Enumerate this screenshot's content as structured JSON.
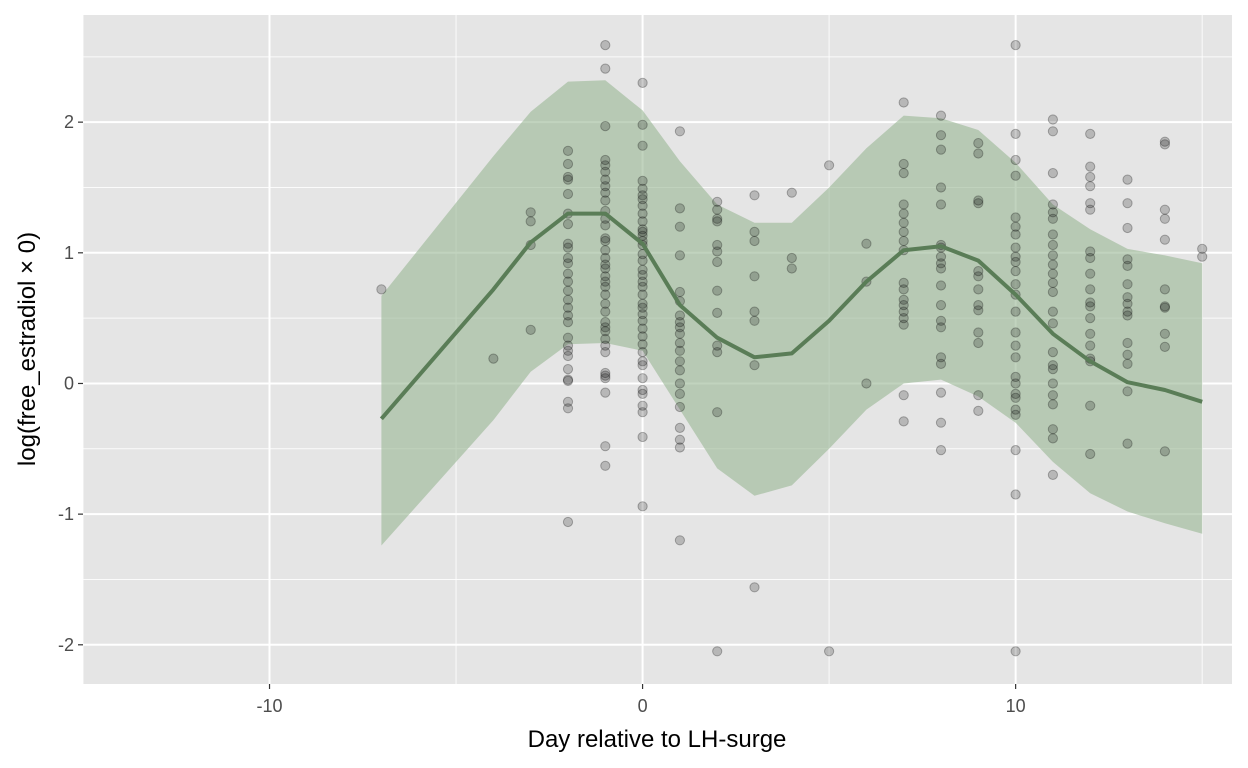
{
  "chart_data": {
    "type": "line",
    "title": "",
    "xlabel": "Day relative to LH-surge",
    "ylabel": "log(free_estradiol × 0)",
    "xlim": [
      -15,
      15.8
    ],
    "ylim": [
      -2.3,
      2.82
    ],
    "x_ticks": [
      -10,
      0,
      10
    ],
    "x_tick_labels": [
      "-10",
      "0",
      "10"
    ],
    "y_ticks": [
      -2,
      -1,
      0,
      1,
      2
    ],
    "y_tick_labels": [
      "-2",
      "-1",
      "0",
      "1",
      "2"
    ],
    "grid": true,
    "legend": "none",
    "colors": {
      "panel_bg": "#e5e5e5",
      "grid": "#ffffff",
      "ribbon": "#9bb896",
      "line": "#5a7d57",
      "points": "#000000"
    },
    "trend": {
      "x": [
        -7,
        -4,
        -3,
        -2,
        -1,
        0,
        1,
        2,
        3,
        4,
        5,
        6,
        7,
        8,
        9,
        10,
        11,
        12,
        13,
        14,
        15
      ],
      "y": [
        -0.27,
        0.72,
        1.08,
        1.3,
        1.3,
        1.07,
        0.6,
        0.35,
        0.2,
        0.23,
        0.48,
        0.78,
        1.02,
        1.05,
        0.94,
        0.68,
        0.38,
        0.17,
        0.01,
        -0.05,
        -0.14
      ],
      "lower": [
        -1.24,
        -0.28,
        0.09,
        0.3,
        0.31,
        0.25,
        -0.2,
        -0.65,
        -0.86,
        -0.78,
        -0.5,
        -0.2,
        0.0,
        0.03,
        -0.1,
        -0.3,
        -0.6,
        -0.84,
        -0.98,
        -1.07,
        -1.15
      ],
      "upper": [
        0.67,
        1.74,
        2.08,
        2.31,
        2.32,
        2.09,
        1.7,
        1.37,
        1.23,
        1.23,
        1.5,
        1.8,
        2.05,
        2.03,
        1.94,
        1.69,
        1.37,
        1.18,
        1.03,
        0.98,
        0.92
      ]
    },
    "points": [
      [
        -7,
        0.72
      ],
      [
        -4,
        0.19
      ],
      [
        -3,
        1.31
      ],
      [
        -3,
        1.24
      ],
      [
        -3,
        1.06
      ],
      [
        -3,
        0.41
      ],
      [
        -2,
        1.78
      ],
      [
        -2,
        1.68
      ],
      [
        -2,
        1.58
      ],
      [
        -2,
        1.56
      ],
      [
        -2,
        1.45
      ],
      [
        -2,
        1.3
      ],
      [
        -2,
        1.22
      ],
      [
        -2,
        1.07
      ],
      [
        -2,
        1.04
      ],
      [
        -2,
        0.96
      ],
      [
        -2,
        0.92
      ],
      [
        -2,
        0.84
      ],
      [
        -2,
        0.78
      ],
      [
        -2,
        0.71
      ],
      [
        -2,
        0.64
      ],
      [
        -2,
        0.58
      ],
      [
        -2,
        0.52
      ],
      [
        -2,
        0.47
      ],
      [
        -2,
        0.35
      ],
      [
        -2,
        0.29
      ],
      [
        -2,
        0.25
      ],
      [
        -2,
        0.21
      ],
      [
        -2,
        0.11
      ],
      [
        -2,
        0.03
      ],
      [
        -2,
        0.02
      ],
      [
        -2,
        -0.14
      ],
      [
        -2,
        -0.19
      ],
      [
        -2,
        -1.06
      ],
      [
        -1,
        2.59
      ],
      [
        -1,
        2.41
      ],
      [
        -1,
        1.97
      ],
      [
        -1,
        1.71
      ],
      [
        -1,
        1.67
      ],
      [
        -1,
        1.62
      ],
      [
        -1,
        1.56
      ],
      [
        -1,
        1.51
      ],
      [
        -1,
        1.46
      ],
      [
        -1,
        1.4
      ],
      [
        -1,
        1.32
      ],
      [
        -1,
        1.26
      ],
      [
        -1,
        1.21
      ],
      [
        -1,
        1.11
      ],
      [
        -1,
        1.09
      ],
      [
        -1,
        1.02
      ],
      [
        -1,
        0.96
      ],
      [
        -1,
        0.91
      ],
      [
        -1,
        0.88
      ],
      [
        -1,
        0.82
      ],
      [
        -1,
        0.78
      ],
      [
        -1,
        0.74
      ],
      [
        -1,
        0.68
      ],
      [
        -1,
        0.61
      ],
      [
        -1,
        0.55
      ],
      [
        -1,
        0.47
      ],
      [
        -1,
        0.43
      ],
      [
        -1,
        0.4
      ],
      [
        -1,
        0.34
      ],
      [
        -1,
        0.29
      ],
      [
        -1,
        0.24
      ],
      [
        -1,
        0.08
      ],
      [
        -1,
        0.06
      ],
      [
        -1,
        0.04
      ],
      [
        -1,
        -0.07
      ],
      [
        -1,
        -0.48
      ],
      [
        -1,
        -0.63
      ],
      [
        0,
        2.3
      ],
      [
        0,
        1.98
      ],
      [
        0,
        1.82
      ],
      [
        0,
        1.55
      ],
      [
        0,
        1.49
      ],
      [
        0,
        1.44
      ],
      [
        0,
        1.41
      ],
      [
        0,
        1.36
      ],
      [
        0,
        1.3
      ],
      [
        0,
        1.24
      ],
      [
        0,
        1.18
      ],
      [
        0,
        1.16
      ],
      [
        0,
        1.13
      ],
      [
        0,
        1.09
      ],
      [
        0,
        1.06
      ],
      [
        0,
        0.99
      ],
      [
        0,
        0.94
      ],
      [
        0,
        0.87
      ],
      [
        0,
        0.83
      ],
      [
        0,
        0.78
      ],
      [
        0,
        0.74
      ],
      [
        0,
        0.68
      ],
      [
        0,
        0.61
      ],
      [
        0,
        0.58
      ],
      [
        0,
        0.53
      ],
      [
        0,
        0.48
      ],
      [
        0,
        0.42
      ],
      [
        0,
        0.36
      ],
      [
        0,
        0.3
      ],
      [
        0,
        0.24
      ],
      [
        0,
        0.17
      ],
      [
        0,
        0.14
      ],
      [
        0,
        0.04
      ],
      [
        0,
        -0.05
      ],
      [
        0,
        -0.08
      ],
      [
        0,
        -0.17
      ],
      [
        0,
        -0.22
      ],
      [
        0,
        -0.41
      ],
      [
        0,
        -0.94
      ],
      [
        1,
        1.93
      ],
      [
        1,
        1.34
      ],
      [
        1,
        1.2
      ],
      [
        1,
        0.98
      ],
      [
        1,
        0.7
      ],
      [
        1,
        0.63
      ],
      [
        1,
        0.52
      ],
      [
        1,
        0.47
      ],
      [
        1,
        0.43
      ],
      [
        1,
        0.38
      ],
      [
        1,
        0.31
      ],
      [
        1,
        0.25
      ],
      [
        1,
        0.17
      ],
      [
        1,
        0.1
      ],
      [
        1,
        0.0
      ],
      [
        1,
        -0.08
      ],
      [
        1,
        -0.18
      ],
      [
        1,
        -0.34
      ],
      [
        1,
        -0.43
      ],
      [
        1,
        -0.49
      ],
      [
        1,
        -1.2
      ],
      [
        2,
        1.39
      ],
      [
        2,
        1.33
      ],
      [
        2,
        1.26
      ],
      [
        2,
        1.24
      ],
      [
        2,
        1.06
      ],
      [
        2,
        1.01
      ],
      [
        2,
        0.93
      ],
      [
        2,
        0.71
      ],
      [
        2,
        0.54
      ],
      [
        2,
        0.29
      ],
      [
        2,
        0.24
      ],
      [
        2,
        -0.22
      ],
      [
        2,
        -2.05
      ],
      [
        3,
        1.44
      ],
      [
        3,
        1.16
      ],
      [
        3,
        1.09
      ],
      [
        3,
        0.82
      ],
      [
        3,
        0.55
      ],
      [
        3,
        0.48
      ],
      [
        3,
        0.14
      ],
      [
        3,
        -1.56
      ],
      [
        4,
        1.46
      ],
      [
        4,
        0.96
      ],
      [
        4,
        0.88
      ],
      [
        5,
        1.67
      ],
      [
        5,
        -2.05
      ],
      [
        6,
        1.07
      ],
      [
        6,
        0.78
      ],
      [
        6,
        0.0
      ],
      [
        7,
        2.15
      ],
      [
        7,
        1.68
      ],
      [
        7,
        1.61
      ],
      [
        7,
        1.37
      ],
      [
        7,
        1.3
      ],
      [
        7,
        1.23
      ],
      [
        7,
        1.16
      ],
      [
        7,
        1.09
      ],
      [
        7,
        1.02
      ],
      [
        7,
        0.77
      ],
      [
        7,
        0.72
      ],
      [
        7,
        0.64
      ],
      [
        7,
        0.6
      ],
      [
        7,
        0.55
      ],
      [
        7,
        0.5
      ],
      [
        7,
        0.45
      ],
      [
        7,
        -0.09
      ],
      [
        7,
        -0.29
      ],
      [
        8,
        2.05
      ],
      [
        8,
        1.9
      ],
      [
        8,
        1.79
      ],
      [
        8,
        1.5
      ],
      [
        8,
        1.37
      ],
      [
        8,
        1.06
      ],
      [
        8,
        1.04
      ],
      [
        8,
        0.97
      ],
      [
        8,
        0.92
      ],
      [
        8,
        0.88
      ],
      [
        8,
        0.75
      ],
      [
        8,
        0.6
      ],
      [
        8,
        0.48
      ],
      [
        8,
        0.43
      ],
      [
        8,
        0.2
      ],
      [
        8,
        0.15
      ],
      [
        8,
        -0.07
      ],
      [
        8,
        -0.3
      ],
      [
        8,
        -0.51
      ],
      [
        9,
        1.84
      ],
      [
        9,
        1.76
      ],
      [
        9,
        1.4
      ],
      [
        9,
        1.38
      ],
      [
        9,
        0.86
      ],
      [
        9,
        0.82
      ],
      [
        9,
        0.72
      ],
      [
        9,
        0.6
      ],
      [
        9,
        0.56
      ],
      [
        9,
        0.39
      ],
      [
        9,
        0.31
      ],
      [
        9,
        -0.09
      ],
      [
        9,
        -0.21
      ],
      [
        10,
        2.59
      ],
      [
        10,
        1.91
      ],
      [
        10,
        1.71
      ],
      [
        10,
        1.59
      ],
      [
        10,
        1.27
      ],
      [
        10,
        1.2
      ],
      [
        10,
        1.14
      ],
      [
        10,
        1.04
      ],
      [
        10,
        0.97
      ],
      [
        10,
        0.93
      ],
      [
        10,
        0.86
      ],
      [
        10,
        0.76
      ],
      [
        10,
        0.68
      ],
      [
        10,
        0.55
      ],
      [
        10,
        0.39
      ],
      [
        10,
        0.29
      ],
      [
        10,
        0.2
      ],
      [
        10,
        0.05
      ],
      [
        10,
        0.0
      ],
      [
        10,
        -0.08
      ],
      [
        10,
        -0.11
      ],
      [
        10,
        -0.2
      ],
      [
        10,
        -0.24
      ],
      [
        10,
        -0.51
      ],
      [
        10,
        -0.85
      ],
      [
        10,
        -2.05
      ],
      [
        11,
        2.02
      ],
      [
        11,
        1.93
      ],
      [
        11,
        1.61
      ],
      [
        11,
        1.37
      ],
      [
        11,
        1.31
      ],
      [
        11,
        1.26
      ],
      [
        11,
        1.14
      ],
      [
        11,
        1.06
      ],
      [
        11,
        0.98
      ],
      [
        11,
        0.91
      ],
      [
        11,
        0.84
      ],
      [
        11,
        0.77
      ],
      [
        11,
        0.7
      ],
      [
        11,
        0.55
      ],
      [
        11,
        0.46
      ],
      [
        11,
        0.24
      ],
      [
        11,
        0.14
      ],
      [
        11,
        0.11
      ],
      [
        11,
        0.0
      ],
      [
        11,
        -0.09
      ],
      [
        11,
        -0.16
      ],
      [
        11,
        -0.35
      ],
      [
        11,
        -0.42
      ],
      [
        11,
        -0.7
      ],
      [
        12,
        1.91
      ],
      [
        12,
        1.66
      ],
      [
        12,
        1.58
      ],
      [
        12,
        1.51
      ],
      [
        12,
        1.38
      ],
      [
        12,
        1.33
      ],
      [
        12,
        1.01
      ],
      [
        12,
        0.96
      ],
      [
        12,
        0.84
      ],
      [
        12,
        0.72
      ],
      [
        12,
        0.62
      ],
      [
        12,
        0.59
      ],
      [
        12,
        0.5
      ],
      [
        12,
        0.38
      ],
      [
        12,
        0.29
      ],
      [
        12,
        0.19
      ],
      [
        12,
        0.17
      ],
      [
        12,
        -0.17
      ],
      [
        12,
        -0.54
      ],
      [
        13,
        1.56
      ],
      [
        13,
        1.38
      ],
      [
        13,
        1.19
      ],
      [
        13,
        0.95
      ],
      [
        13,
        0.9
      ],
      [
        13,
        0.76
      ],
      [
        13,
        0.66
      ],
      [
        13,
        0.61
      ],
      [
        13,
        0.55
      ],
      [
        13,
        0.52
      ],
      [
        13,
        0.31
      ],
      [
        13,
        0.22
      ],
      [
        13,
        0.15
      ],
      [
        13,
        -0.06
      ],
      [
        13,
        -0.46
      ],
      [
        14,
        1.85
      ],
      [
        14,
        1.83
      ],
      [
        14,
        1.33
      ],
      [
        14,
        1.26
      ],
      [
        14,
        1.1
      ],
      [
        14,
        0.72
      ],
      [
        14,
        0.59
      ],
      [
        14,
        0.58
      ],
      [
        14,
        0.38
      ],
      [
        14,
        0.28
      ],
      [
        14,
        -0.52
      ],
      [
        15,
        1.03
      ],
      [
        15,
        0.97
      ]
    ]
  }
}
